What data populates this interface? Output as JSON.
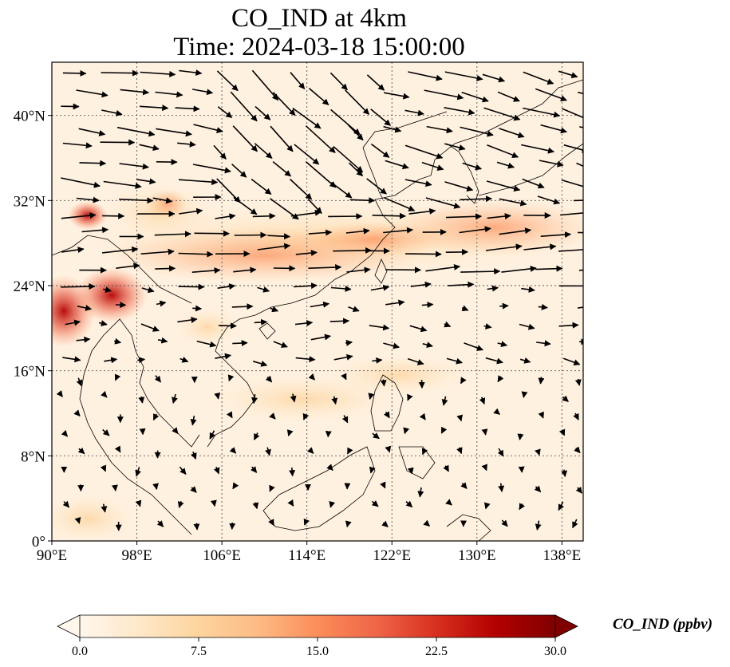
{
  "title": {
    "line1": "CO_IND at 4km",
    "line2": "Time: 2024-03-18 15:00:00"
  },
  "map": {
    "lon_range": [
      90,
      140
    ],
    "lat_range": [
      0,
      45
    ],
    "gridlines": true,
    "x_ticks": [
      "90°E",
      "98°E",
      "106°E",
      "114°E",
      "122°E",
      "130°E",
      "138°E"
    ],
    "x_tick_values": [
      90,
      98,
      106,
      114,
      122,
      130,
      138
    ],
    "y_ticks": [
      "0°",
      "8°N",
      "16°N",
      "24°N",
      "32°N",
      "40°N"
    ],
    "y_tick_values": [
      0,
      8,
      16,
      24,
      32,
      40
    ]
  },
  "colorbar": {
    "label": "CO_IND (ppbv)",
    "colormap": "OrRd",
    "colors": [
      "#fff7ec",
      "#fee8c8",
      "#fdd49e",
      "#fdbb84",
      "#fc8d59",
      "#ef6548",
      "#d7301f",
      "#b30000",
      "#7f0000"
    ],
    "min": 0.0,
    "max": 30.0,
    "extend": "both",
    "ticks": [
      "0.0",
      "7.5",
      "15.0",
      "22.5",
      "30.0"
    ],
    "tick_values": [
      0,
      7.5,
      15,
      22.5,
      30
    ]
  }
}
